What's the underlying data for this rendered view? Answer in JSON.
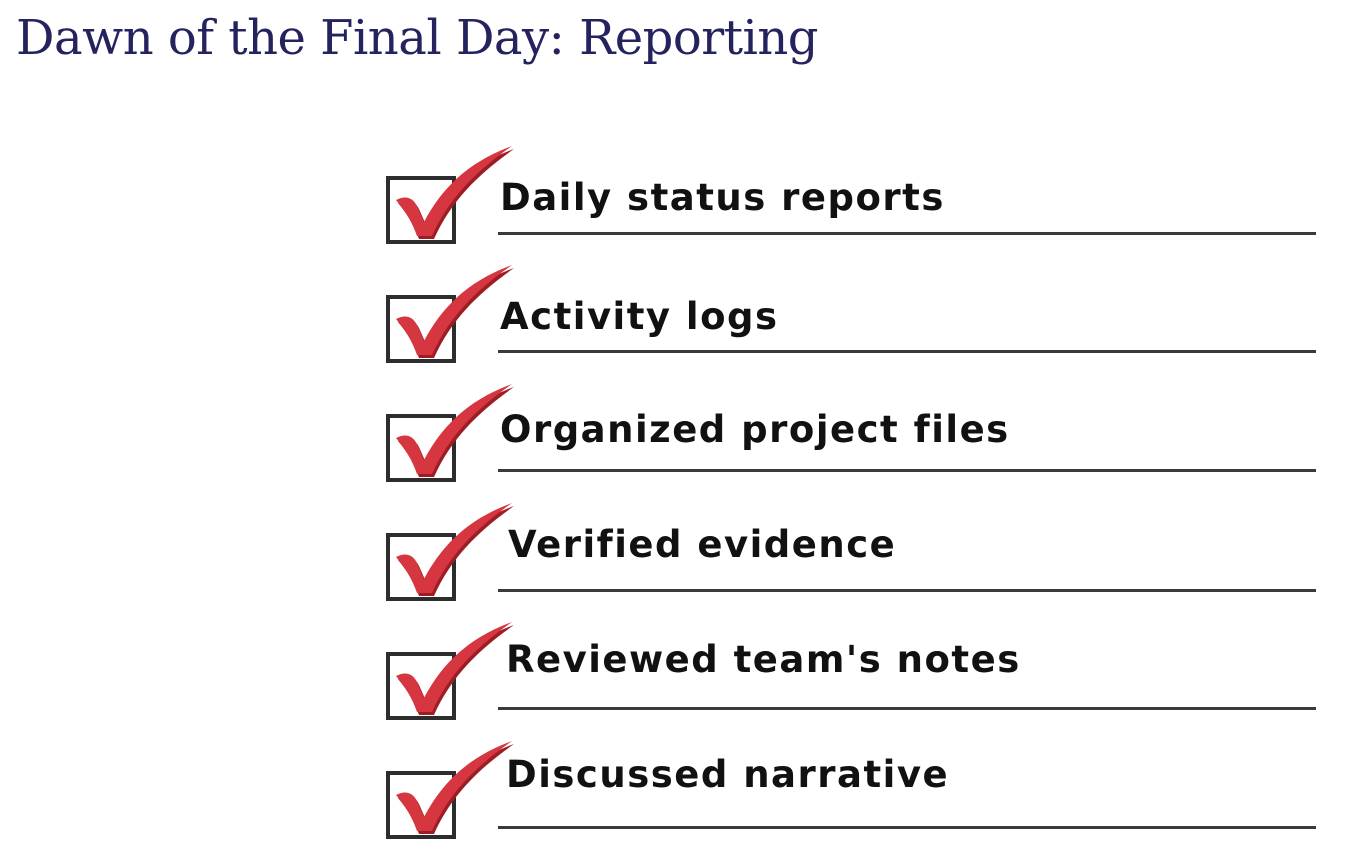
{
  "slide": {
    "title": "Dawn of the Final Day:  Reporting",
    "title_color": "#24235e"
  },
  "colors": {
    "check_mark": "#d5363f",
    "check_mark_shadow": "#9c1d24",
    "box_border": "#2d2d2d",
    "line": "#3a3a3a",
    "text": "#111111"
  },
  "checklist": {
    "items": [
      {
        "label": "Daily status reports",
        "checked": true,
        "icon": "red-checkmark-icon"
      },
      {
        "label": "Activity logs",
        "checked": true,
        "icon": "red-checkmark-icon"
      },
      {
        "label": "Organized project files",
        "checked": true,
        "icon": "red-checkmark-icon"
      },
      {
        "label": "Verified evidence",
        "checked": true,
        "icon": "red-checkmark-icon"
      },
      {
        "label": "Reviewed team's notes",
        "checked": true,
        "icon": "red-checkmark-icon"
      },
      {
        "label": "Discussed narrative",
        "checked": true,
        "icon": "red-checkmark-icon"
      }
    ]
  }
}
